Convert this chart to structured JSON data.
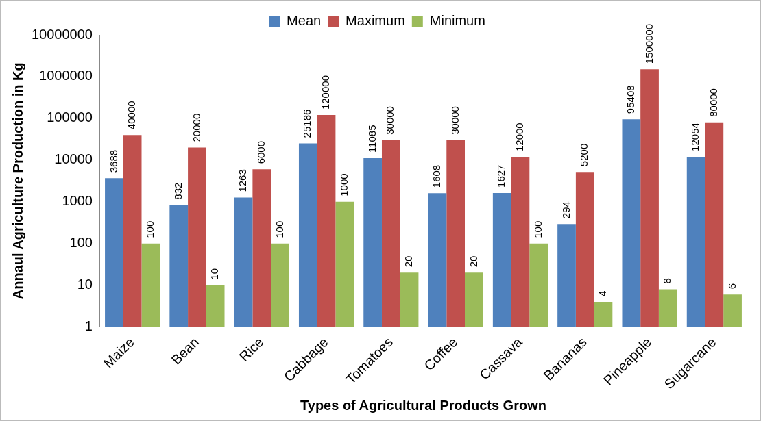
{
  "chart_data": {
    "type": "bar",
    "xlabel": "Types of Agricultural Products Grown",
    "ylabel": "Annaul Agriculture Production in Kg",
    "categories": [
      "Maize",
      "Bean",
      "Rice",
      "Cabbage",
      "Tomatoes",
      "Coffee",
      "Cassava",
      "Bananas",
      "Pineapple",
      "Sugarcane"
    ],
    "series": [
      {
        "name": "Mean",
        "color": "#4f81bd",
        "values": [
          3688,
          832,
          1263,
          25186,
          11085,
          1608,
          1627,
          294,
          95408,
          12054
        ]
      },
      {
        "name": "Maximum",
        "color": "#c0504d",
        "values": [
          40000,
          20000,
          6000,
          120000,
          30000,
          30000,
          12000,
          5200,
          1500000,
          80000
        ]
      },
      {
        "name": "Minimum",
        "color": "#9bbb59",
        "values": [
          100,
          10,
          100,
          1000,
          20,
          20,
          100,
          4,
          8,
          6
        ]
      }
    ],
    "log": "y",
    "ylim": [
      1,
      10000000
    ],
    "yticks": [
      1,
      10,
      100,
      1000,
      10000,
      100000,
      1000000,
      10000000
    ],
    "grid": false,
    "legend": "top",
    "data_labels": true
  }
}
